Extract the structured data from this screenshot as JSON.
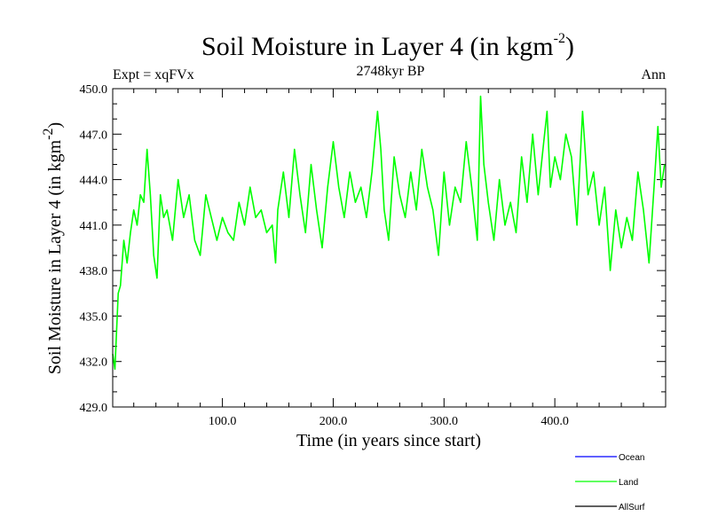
{
  "chart_data": {
    "type": "line",
    "title": "Soil Moisture in Layer 4 (in kgm",
    "title_sup": "-2",
    "title_close": ")",
    "subtitle_left": "Expt = xqFVx",
    "subtitle_center": "2748kyr BP",
    "subtitle_right": "Ann",
    "xlabel": "Time (in years since start)",
    "ylabel": "Soil Moisture in Layer 4 (in kgm",
    "ylabel_sup": "-2",
    "ylabel_close": ")",
    "xlim": [
      1,
      500
    ],
    "ylim": [
      429.0,
      450.0
    ],
    "xticks": [
      100,
      200,
      300,
      400
    ],
    "xtick_labels": [
      "100.0",
      "200.0",
      "300.0",
      "400.0"
    ],
    "yticks": [
      429,
      432,
      435,
      438,
      441,
      444,
      447,
      450
    ],
    "ytick_labels": [
      "429.0",
      "432.0",
      "435.0",
      "438.0",
      "441.0",
      "444.0",
      "447.0",
      "450.0"
    ],
    "series": [
      {
        "name": "Land",
        "color": "#00ff00",
        "x": [
          1,
          3,
          6,
          8,
          11,
          14,
          17,
          20,
          23,
          26,
          29,
          32,
          35,
          38,
          41,
          44,
          47,
          50,
          55,
          60,
          65,
          70,
          75,
          80,
          85,
          90,
          95,
          100,
          105,
          110,
          115,
          120,
          125,
          130,
          135,
          140,
          145,
          148,
          150,
          155,
          160,
          165,
          170,
          175,
          180,
          185,
          190,
          195,
          200,
          205,
          210,
          215,
          220,
          225,
          230,
          235,
          240,
          243,
          246,
          250,
          255,
          260,
          265,
          270,
          275,
          280,
          285,
          290,
          295,
          300,
          305,
          310,
          315,
          320,
          325,
          330,
          333,
          336,
          340,
          345,
          350,
          355,
          360,
          365,
          370,
          375,
          380,
          385,
          390,
          393,
          396,
          400,
          405,
          410,
          415,
          420,
          425,
          430,
          435,
          440,
          445,
          450,
          455,
          460,
          465,
          470,
          475,
          480,
          485,
          490,
          493,
          496,
          499
        ],
        "values": [
          432.5,
          431.5,
          436.5,
          437.0,
          440.0,
          438.5,
          440.5,
          442.0,
          441.0,
          443.0,
          442.5,
          446.0,
          443.0,
          439.0,
          437.5,
          443.0,
          441.5,
          442.0,
          440.0,
          444.0,
          441.5,
          443.0,
          440.0,
          439.0,
          443.0,
          441.5,
          440.0,
          441.5,
          440.5,
          440.0,
          442.5,
          441.0,
          443.5,
          441.5,
          442.0,
          440.5,
          441.0,
          438.5,
          442.0,
          444.5,
          441.5,
          446.0,
          443.0,
          440.5,
          445.0,
          442.0,
          439.5,
          443.5,
          446.5,
          443.5,
          441.5,
          444.5,
          442.5,
          443.5,
          441.5,
          444.5,
          448.5,
          446.0,
          442.0,
          440.0,
          445.5,
          443.0,
          441.5,
          444.5,
          442.0,
          446.0,
          443.5,
          442.0,
          439.0,
          444.5,
          441.0,
          443.5,
          442.5,
          446.5,
          443.5,
          440.0,
          449.5,
          445.0,
          442.5,
          440.0,
          444.0,
          441.0,
          442.5,
          440.5,
          445.5,
          442.5,
          447.0,
          443.0,
          446.5,
          448.5,
          443.5,
          445.5,
          444.0,
          447.0,
          445.5,
          441.0,
          448.5,
          443.0,
          444.5,
          441.0,
          443.5,
          438.0,
          442.0,
          439.5,
          441.5,
          440.0,
          444.5,
          442.0,
          438.5,
          444.0,
          447.5,
          443.5,
          445.0
        ]
      }
    ],
    "legend": [
      {
        "label": "Ocean",
        "color": "#0000ff"
      },
      {
        "label": "Land",
        "color": "#00ff00"
      },
      {
        "label": "AllSurf",
        "color": "#000000"
      }
    ]
  }
}
